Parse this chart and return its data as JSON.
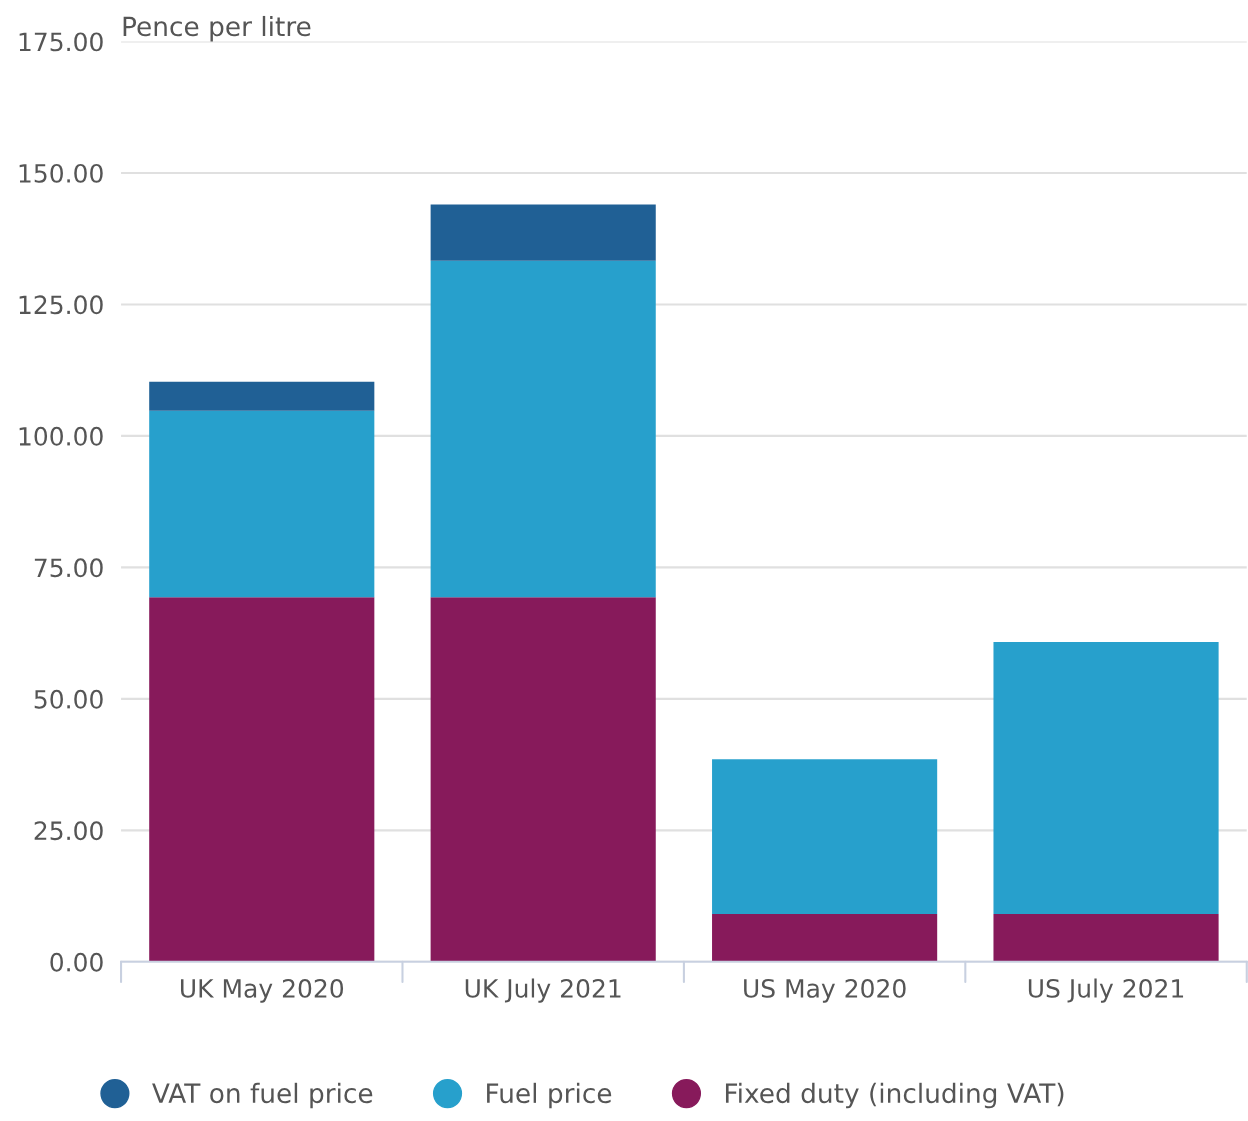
{
  "chart_data": {
    "type": "bar",
    "stacked": true,
    "ylabel": "Pence per litre",
    "categories": [
      "UK May 2020",
      "UK July 2021",
      "US May 2020",
      "US July 2021"
    ],
    "series": [
      {
        "name": "Fixed duty (including VAT)",
        "color": "#871a5b",
        "values": [
          69.3,
          69.3,
          9.1,
          9.1
        ]
      },
      {
        "name": "Fuel price",
        "color": "#27a0cc",
        "values": [
          35.5,
          64.0,
          29.4,
          51.7
        ]
      },
      {
        "name": "VAT on fuel price",
        "color": "#206095",
        "values": [
          5.5,
          10.7,
          null,
          null
        ]
      }
    ],
    "ylim": [
      0,
      175
    ],
    "yticks": [
      {
        "value": 0,
        "label": "0.00"
      },
      {
        "value": 25,
        "label": "25.00"
      },
      {
        "value": 50,
        "label": "50.00"
      },
      {
        "value": 75,
        "label": "75.00"
      },
      {
        "value": 100,
        "label": "100.00"
      },
      {
        "value": 125,
        "label": "125.00"
      },
      {
        "value": 150,
        "label": "150.00"
      },
      {
        "value": 175,
        "label": "175.00"
      }
    ],
    "grid": "y",
    "legend": "bottom"
  }
}
